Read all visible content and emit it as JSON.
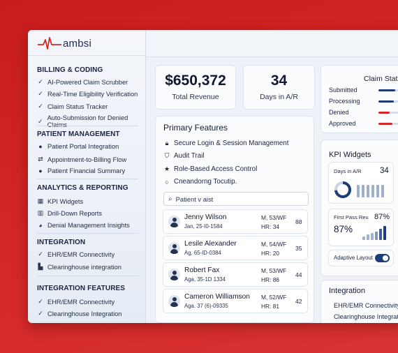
{
  "brand": {
    "logo_text": "ambsi",
    "accent": "#d42727"
  },
  "sidebar": {
    "sections": [
      {
        "title": "BILLING & CODING",
        "items": [
          {
            "label": "AI-Powered Claim Scrubber",
            "icon": "check-icon"
          },
          {
            "label": "Real-Time Eligibility Verification",
            "icon": "check-icon"
          },
          {
            "label": "Claim Status Tracker",
            "icon": "check-icon"
          },
          {
            "label": "Auto-Submission for Denied Claims",
            "icon": "check-icon"
          }
        ]
      },
      {
        "title": "PATIENT MANAGEMENT",
        "items": [
          {
            "label": "Patient Portal Integration",
            "icon": "user-icon"
          },
          {
            "label": "Appointment-to-Billing Flow",
            "icon": "flow-icon"
          },
          {
            "label": "Patient Financial Summary",
            "icon": "user-icon"
          }
        ]
      },
      {
        "title": "ANALYTICS & REPORTING",
        "items": [
          {
            "label": "KPI Widgets",
            "icon": "grid-icon"
          },
          {
            "label": "Drill-Down Reports",
            "icon": "bars-icon"
          },
          {
            "label": "Denial Management Insights",
            "icon": "pie-icon"
          }
        ]
      },
      {
        "title": "INTEGRATION",
        "items": [
          {
            "label": "EHR/EMR Connectivity",
            "icon": "check-icon"
          },
          {
            "label": "Clearinghouse integration",
            "icon": "bank-icon"
          }
        ]
      },
      {
        "title": "INTEGRATION FEATURES",
        "items": [
          {
            "label": "EHR/EMR Connectivity",
            "icon": "check-icon"
          },
          {
            "label": "Clearinghouse Integration",
            "icon": "check-icon"
          }
        ]
      }
    ]
  },
  "stats": {
    "revenue": {
      "value": "$650,372",
      "label": "Total Revenue"
    },
    "ar_days": {
      "value": "34",
      "label": "Days in A/R"
    }
  },
  "primary_features": {
    "title": "Primary Features",
    "items": [
      {
        "label": "Secure Login & Session Management",
        "icon": "lock-icon"
      },
      {
        "label": "Audit Trail",
        "icon": "shield-icon"
      },
      {
        "label": "Role-Based Access Control",
        "icon": "star-icon"
      },
      {
        "label": "Cneandorng Tocutip.",
        "icon": "circle-icon"
      }
    ],
    "search_placeholder": "Patient v aist"
  },
  "patients": [
    {
      "name": "Jenny Wilson",
      "sub": "Jan, 25-I0-1584",
      "m1": "M, 53/WF",
      "m2": "HR: 34",
      "num": "88"
    },
    {
      "name": "Lesile Alexander",
      "sub": "Ag, 65-ID-0384",
      "m1": "M, 54/WF",
      "m2": "HR: 20",
      "num": "35"
    },
    {
      "name": "Robert Fax",
      "sub": "Aga, 35-1D 1334",
      "m1": "M, 53/WF",
      "m2": "HR: 86",
      "num": "44"
    },
    {
      "name": "Cameron Williamson",
      "sub": "Aga. 37 (6)-09335",
      "m1": "M, 52/WF",
      "m2": "HR: 81",
      "num": "42"
    }
  ],
  "claim_status": {
    "title": "Claim Status",
    "rows": [
      {
        "label": "Submitted",
        "color": "#1f3a78",
        "level": 0.6
      },
      {
        "label": "Processing",
        "color": "#1f3a78",
        "level": 0.55
      },
      {
        "label": "Denied",
        "color": "#d42727",
        "level": 0.4
      },
      {
        "label": "Approved",
        "color": "#d42727",
        "level": 0.5
      }
    ]
  },
  "kpi": {
    "title": "KPI Widgets",
    "ar_label": "Days in A/R",
    "ar_value": "34",
    "fpr_label": "First Pass Rev.",
    "fpr_value_small": "87%",
    "fpr_value_big": "87%",
    "adaptive_label": "Adaptive Layout",
    "adaptive_on": true
  },
  "integration": {
    "title": "Integration",
    "items": [
      "EHR/EMR Connectivity",
      "Clearinghouse Integrat"
    ]
  }
}
